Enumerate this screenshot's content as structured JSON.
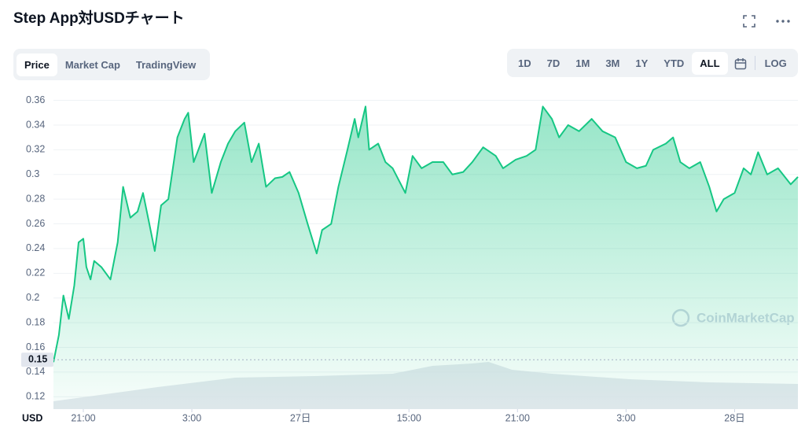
{
  "chart_data": {
    "type": "area",
    "title": "Step App対USDチャート",
    "tabs": [
      "Price",
      "Market Cap",
      "TradingView"
    ],
    "active_tab": 0,
    "ranges": [
      "1D",
      "7D",
      "1M",
      "3M",
      "1Y",
      "YTD",
      "ALL"
    ],
    "active_range": 6,
    "log_button": "LOG",
    "watermark": "CoinMarketCap",
    "axis_label": "USD",
    "color": "#16c784",
    "current_price": 0.15,
    "x": [
      -1.65,
      -1.35,
      -1.1,
      -0.8,
      -0.5,
      -0.26,
      0,
      0.17,
      0.4,
      0.6,
      1.0,
      1.5,
      1.9,
      2.2,
      2.6,
      3.0,
      3.3,
      3.65,
      3.95,
      4.3,
      4.7,
      5.2,
      5.6,
      5.8,
      6.1,
      6.7,
      7.1,
      7.6,
      8.0,
      8.4,
      8.9,
      9.3,
      9.7,
      10.1,
      10.6,
      11.0,
      11.4,
      11.9,
      12.4,
      12.9,
      13.2,
      13.7,
      14.1,
      14.6,
      15.0,
      15.2,
      15.6,
      15.8,
      16.3,
      16.7,
      17.1,
      17.8,
      18.2,
      18.7,
      19.3,
      19.9,
      20.4,
      21.0,
      21.5,
      22.1,
      22.8,
      23.2,
      23.9,
      24.5,
      25.0,
      25.4,
      25.9,
      26.3,
      26.8,
      27.4,
      28.1,
      28.7,
      29.4,
      30.0,
      30.6,
      31.1,
      31.5,
      32.2,
      32.6,
      33.0,
      33.5,
      34.1,
      34.6,
      35.0,
      35.4,
      36.0,
      36.5,
      36.9,
      37.3,
      37.8,
      38.4,
      39.1,
      39.5
    ],
    "values": [
      0.148,
      0.17,
      0.202,
      0.183,
      0.21,
      0.245,
      0.248,
      0.225,
      0.215,
      0.23,
      0.225,
      0.215,
      0.245,
      0.29,
      0.265,
      0.27,
      0.285,
      0.26,
      0.238,
      0.275,
      0.28,
      0.33,
      0.345,
      0.35,
      0.31,
      0.333,
      0.285,
      0.31,
      0.325,
      0.335,
      0.342,
      0.31,
      0.325,
      0.29,
      0.297,
      0.298,
      0.302,
      0.285,
      0.26,
      0.236,
      0.255,
      0.26,
      0.29,
      0.32,
      0.345,
      0.33,
      0.355,
      0.32,
      0.325,
      0.31,
      0.305,
      0.285,
      0.315,
      0.305,
      0.31,
      0.31,
      0.3,
      0.302,
      0.31,
      0.322,
      0.315,
      0.305,
      0.312,
      0.315,
      0.32,
      0.355,
      0.345,
      0.33,
      0.34,
      0.335,
      0.345,
      0.335,
      0.33,
      0.31,
      0.305,
      0.307,
      0.32,
      0.325,
      0.33,
      0.31,
      0.305,
      0.31,
      0.29,
      0.27,
      0.28,
      0.285,
      0.305,
      0.3,
      0.318,
      0.3,
      0.305,
      0.292,
      0.298
    ],
    "volume": {
      "x": [
        -1.65,
        4.1,
        8.4,
        12.8,
        17.1,
        19.3,
        21.5,
        22.4,
        23.7,
        25.9,
        30.2,
        34.6,
        39.5
      ],
      "values": [
        10,
        28,
        40,
        42,
        45,
        55,
        58,
        60,
        50,
        45,
        38,
        34,
        32
      ]
    },
    "volume_lim": [
      0,
      100
    ],
    "xlim": [
      -1.65,
      39.5
    ],
    "xticks": [
      {
        "value": 0,
        "label": "21:00"
      },
      {
        "value": 6,
        "label": "3:00"
      },
      {
        "value": 12,
        "label": "27日"
      },
      {
        "value": 18,
        "label": "15:00"
      },
      {
        "value": 24,
        "label": "21:00"
      },
      {
        "value": 30,
        "label": "3:00"
      },
      {
        "value": 36,
        "label": "28日"
      }
    ],
    "ylim": [
      0.11,
      0.368
    ],
    "yticks": [
      0.12,
      0.14,
      0.16,
      0.18,
      0.2,
      0.22,
      0.24,
      0.26,
      0.28,
      0.3,
      0.32,
      0.34,
      0.36
    ],
    "grid": true
  }
}
